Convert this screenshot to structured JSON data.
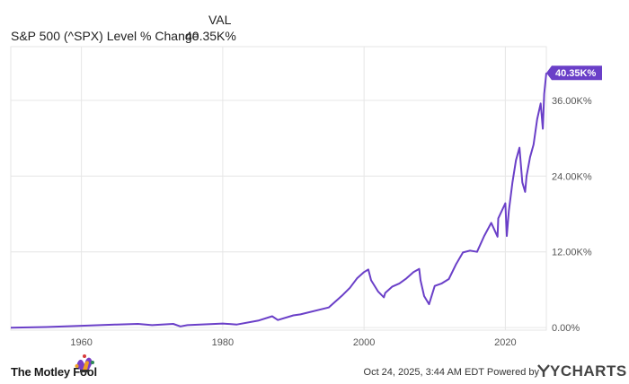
{
  "header": {
    "column_label": "VAL",
    "series_name": "S&P 500 (^SPX) Level % Change",
    "series_value": "40.35K%"
  },
  "footer": {
    "brand": "The Motley Fool",
    "timestamp": "Oct 24, 2025, 3:44 AM EDT",
    "powered_by": "Powered by",
    "provider": "YCHARTS"
  },
  "colors": {
    "line": "#6a3fc8",
    "badge": "#6a3fc8",
    "grid": "#e6e6e6",
    "axis_text": "#555555"
  },
  "chart_data": {
    "type": "line",
    "title": "",
    "xlabel": "",
    "ylabel": "",
    "xlim": [
      1950,
      2025.8
    ],
    "ylim": [
      -400,
      44500
    ],
    "x_ticks": [
      1960,
      1980,
      2000,
      2020
    ],
    "x_tick_labels": [
      "1960",
      "1980",
      "2000",
      "2020"
    ],
    "y_ticks": [
      0,
      12000,
      24000,
      36000
    ],
    "y_tick_labels": [
      "0.00%",
      "12.00K%",
      "24.00K%",
      "36.00K%"
    ],
    "grid": true,
    "last_value_label": "40.35K%",
    "series": [
      {
        "name": "S&P 500 (^SPX) Level % Change",
        "x": [
          1950,
          1955,
          1960,
          1965,
          1968,
          1970,
          1973,
          1974,
          1975,
          1980,
          1982,
          1985,
          1987,
          1987.8,
          1990,
          1991,
          1995,
          1997,
          1998,
          1999,
          2000,
          2000.6,
          2001,
          2002,
          2002.8,
          2003,
          2004,
          2005,
          2006,
          2007,
          2007.8,
          2008,
          2008.5,
          2009.2,
          2010,
          2011,
          2012,
          2013,
          2014,
          2015,
          2016,
          2017,
          2018,
          2018.9,
          2019,
          2020,
          2020.2,
          2020.5,
          2021,
          2021.5,
          2022,
          2022.4,
          2022.8,
          2023,
          2023.5,
          2024,
          2024.5,
          2025,
          2025.3,
          2025.5,
          2025.8
        ],
        "y": [
          0,
          100,
          300,
          500,
          600,
          400,
          600,
          200,
          400,
          650,
          500,
          1100,
          1800,
          1200,
          1950,
          2100,
          3200,
          5200,
          6300,
          7800,
          8800,
          9200,
          7500,
          5700,
          4800,
          5500,
          6500,
          7000,
          7800,
          8800,
          9300,
          7500,
          5000,
          3700,
          6600,
          7000,
          7700,
          10000,
          11900,
          12200,
          12000,
          14500,
          16600,
          14400,
          17300,
          19700,
          14500,
          18500,
          23000,
          26500,
          28500,
          23000,
          21500,
          24000,
          27000,
          29000,
          33000,
          35500,
          31500,
          37000,
          40350
        ]
      }
    ]
  }
}
